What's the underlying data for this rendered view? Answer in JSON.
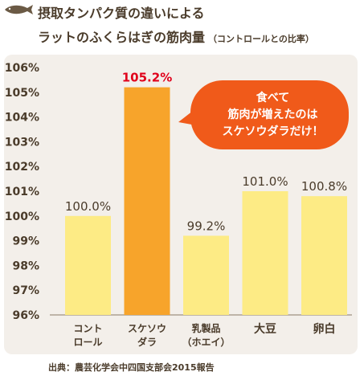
{
  "header": {
    "title_line1": "摂取タンパク質の違いによる",
    "title_line2": "ラットのふくらはぎの筋肉量",
    "subtitle": "（コントロールとの比率）"
  },
  "annotation": {
    "lines": [
      "食べて",
      "筋肉が増えたのは",
      "スケソウダラだけ！"
    ]
  },
  "source": "出典：農芸化学会中四国支部会2015報告",
  "colors": {
    "bar_default": "#fdeb85",
    "bar_highlight": "#f7a42b",
    "highlight_label": "#e0001b",
    "callout": "#f05a1a",
    "panel": "#f3efea",
    "axis_text": "#4a3b2a"
  },
  "chart_data": {
    "type": "bar",
    "title": "摂取タンパク質の違いによるラットのふくらはぎの筋肉量",
    "subtitle": "（コントロールとの比率）",
    "xlabel": "",
    "ylabel": "",
    "ylim": [
      96,
      106
    ],
    "yticks": [
      "96%",
      "97%",
      "98%",
      "99%",
      "100%",
      "101%",
      "102%",
      "103%",
      "104%",
      "105%",
      "106%"
    ],
    "grid": false,
    "categories": [
      [
        "コント",
        "ロール"
      ],
      [
        "スケソウ",
        "ダラ"
      ],
      [
        "乳製品",
        "（ホエイ）"
      ],
      [
        "大豆"
      ],
      [
        "卵白"
      ]
    ],
    "values": [
      100.0,
      105.2,
      99.2,
      101.0,
      100.8
    ],
    "value_labels": [
      "100.0%",
      "105.2%",
      "99.2%",
      "101.0%",
      "100.8%"
    ],
    "highlight_index": 1
  }
}
